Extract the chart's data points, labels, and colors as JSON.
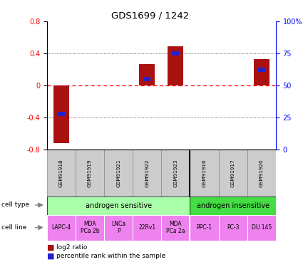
{
  "title": "GDS1699 / 1242",
  "samples": [
    "GSM91918",
    "GSM91919",
    "GSM91921",
    "GSM91922",
    "GSM91923",
    "GSM91916",
    "GSM91917",
    "GSM91920"
  ],
  "log2_ratio": [
    -0.72,
    0.0,
    0.0,
    0.27,
    0.49,
    0.0,
    0.0,
    0.33
  ],
  "percentile_rank": [
    28,
    0,
    0,
    55,
    75,
    0,
    0,
    62
  ],
  "ylim": [
    -0.8,
    0.8
  ],
  "yticks_left": [
    -0.8,
    -0.4,
    0,
    0.4,
    0.8
  ],
  "yticks_right": [
    0,
    25,
    50,
    75,
    100
  ],
  "cell_type_groups": [
    {
      "label": "androgen sensitive",
      "start": 0,
      "end": 5,
      "color": "#AAFFAA"
    },
    {
      "label": "androgen insensitive",
      "start": 5,
      "end": 8,
      "color": "#44DD44"
    }
  ],
  "cell_lines": [
    "LAPC-4",
    "MDA\nPCa 2b",
    "LNCa\nP",
    "22Rv1",
    "MDA\nPCa 2a",
    "PPC-1",
    "PC-3",
    "DU 145"
  ],
  "cell_line_color": "#EE82EE",
  "bar_color_red": "#AA1111",
  "bar_color_blue": "#2222CC",
  "sample_bg_color": "#CCCCCC",
  "sample_edge_color": "#888888",
  "zero_line_color": "#FF0000",
  "grid_color": "#333333",
  "legend_red": "log2 ratio",
  "legend_blue": "percentile rank within the sample",
  "bar_width": 0.55,
  "blue_bar_width": 0.25
}
